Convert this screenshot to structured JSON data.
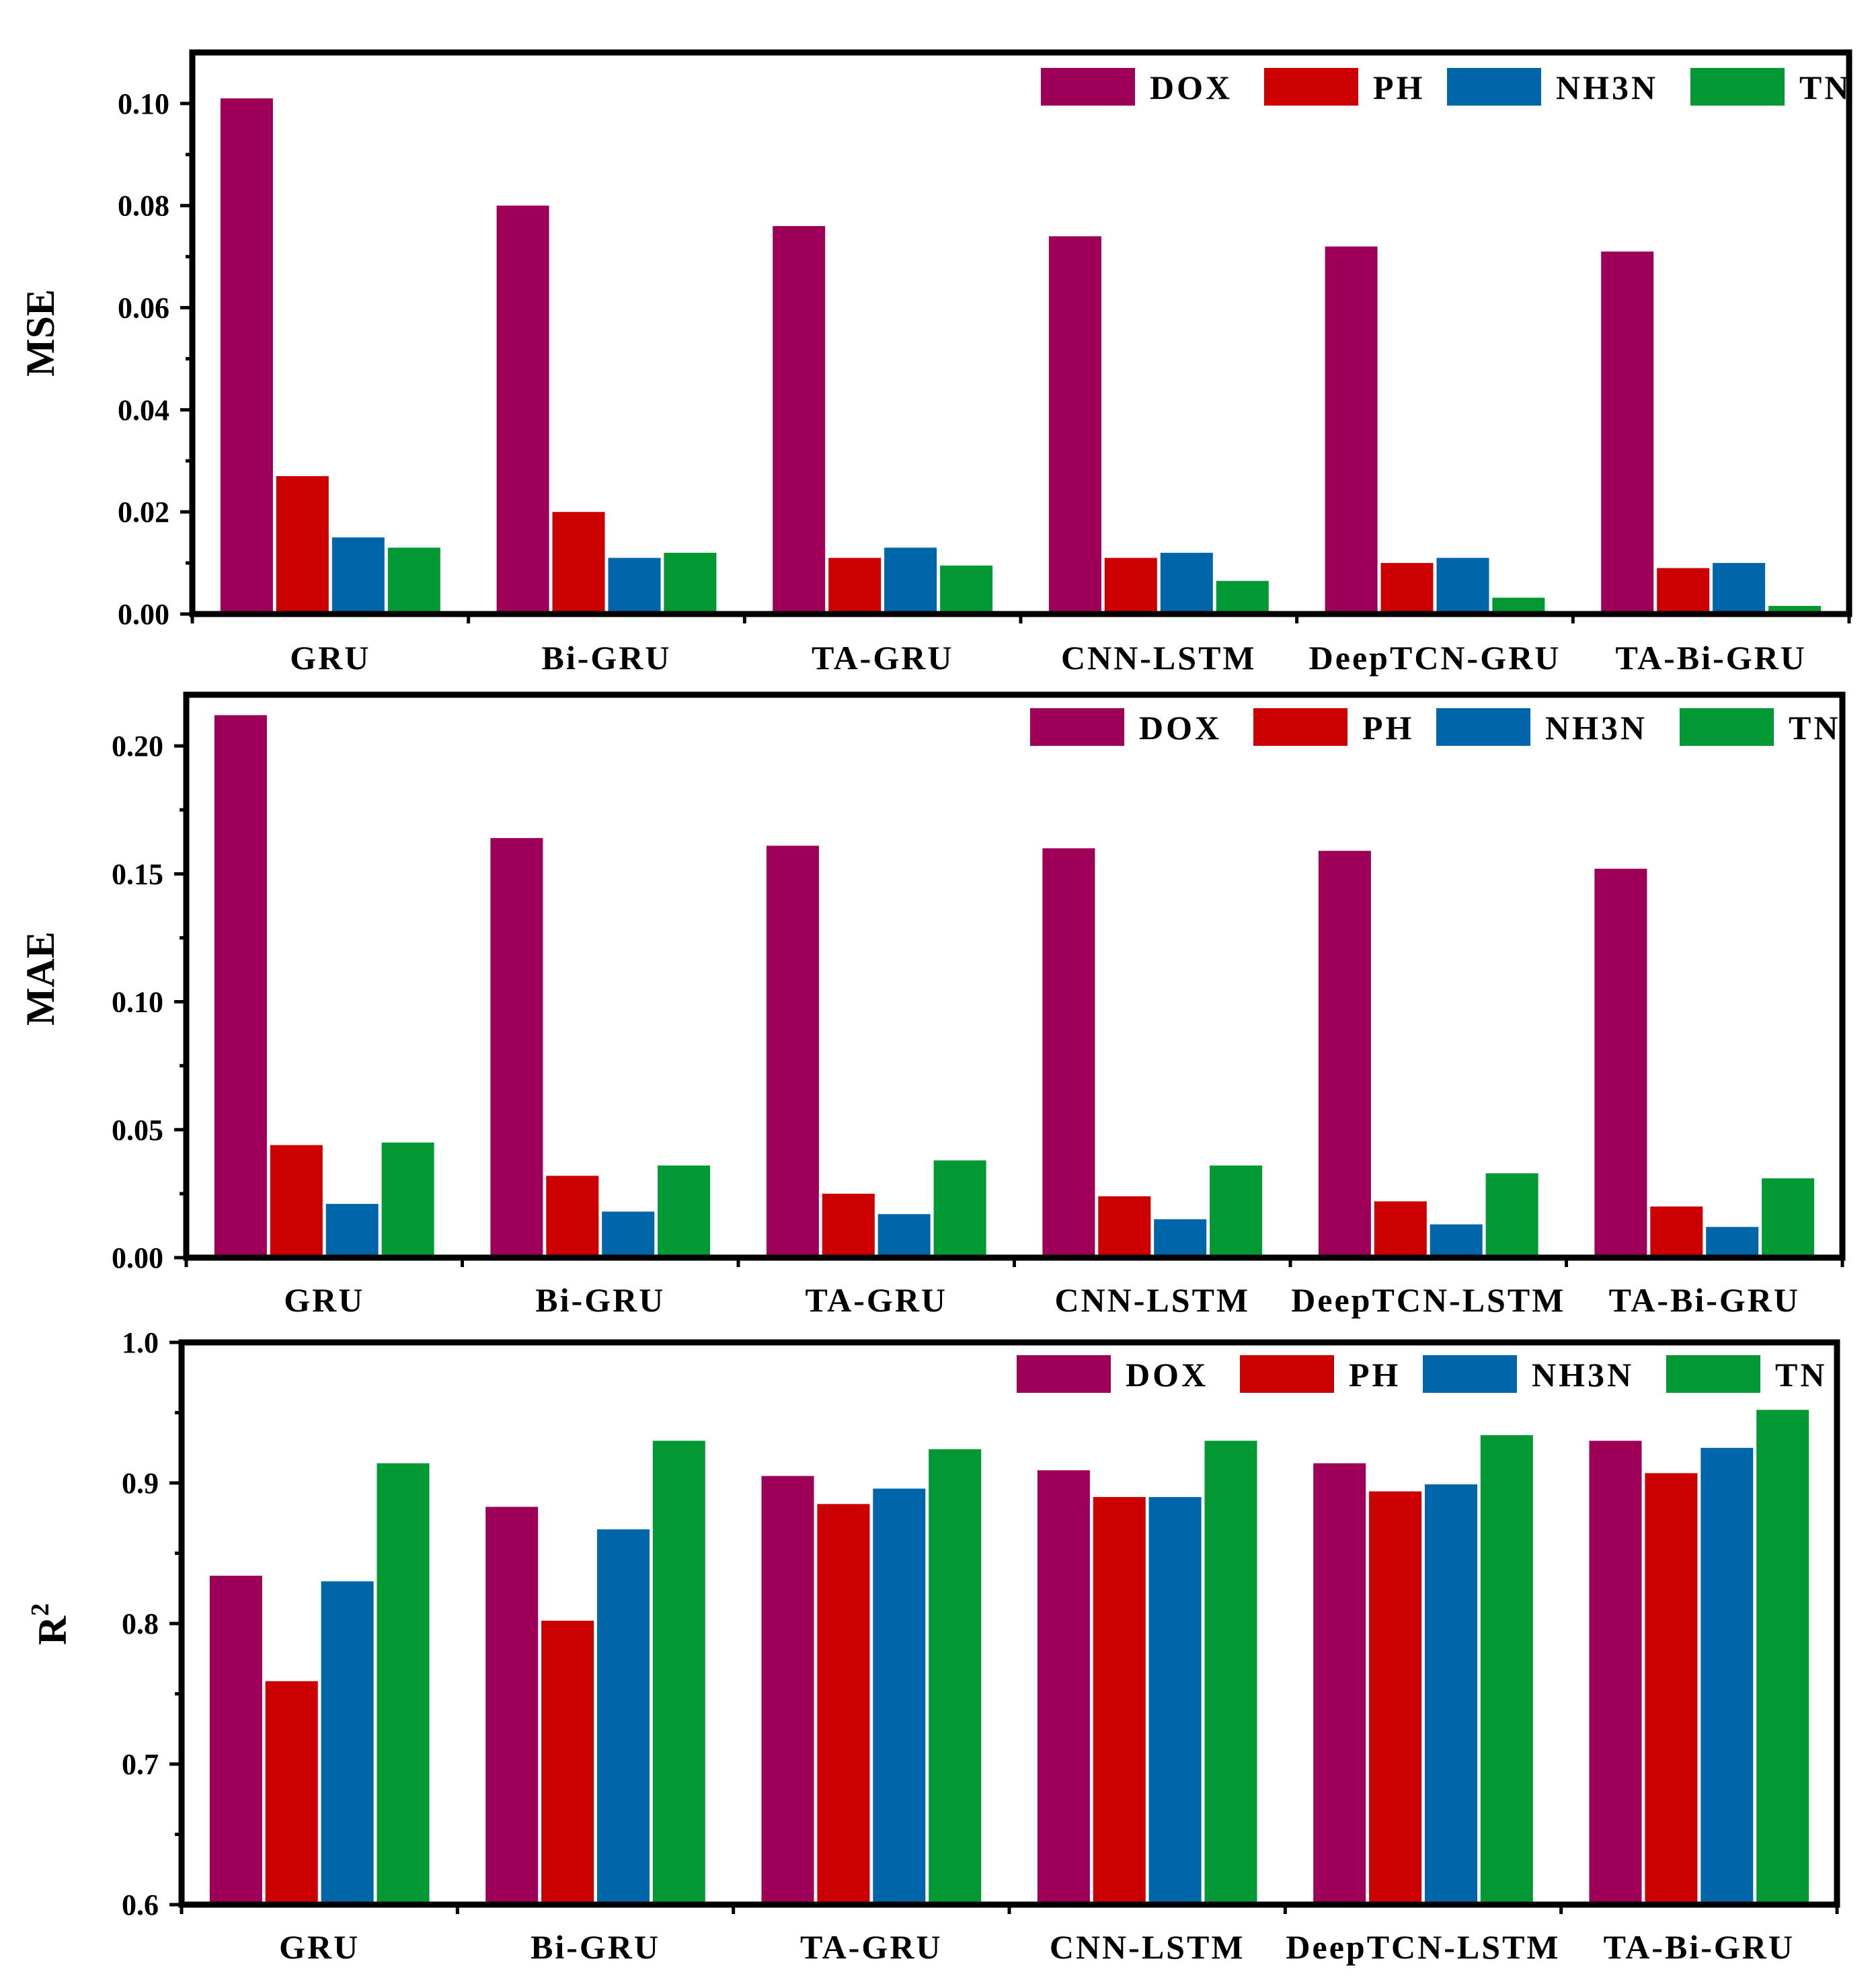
{
  "colors": {
    "DOX": "#9E0059",
    "PH": "#CC0000",
    "NH3N": "#0066AA",
    "TN": "#009933"
  },
  "chart_data": [
    {
      "type": "bar",
      "ylabel": "MSE",
      "ylim": [
        0.0,
        0.11
      ],
      "yticks": [
        "0.00",
        "0.02",
        "0.04",
        "0.06",
        "0.08",
        "0.10"
      ],
      "ytick_values": [
        0.0,
        0.02,
        0.04,
        0.06,
        0.08,
        0.1
      ],
      "categories": [
        "GRU",
        "Bi-GRU",
        "TA-GRU",
        "CNN-LSTM",
        "DeepTCN-GRU",
        "TA-Bi-GRU"
      ],
      "legend": [
        "DOX",
        "PH",
        "NH3N",
        "TN"
      ],
      "series": [
        {
          "name": "DOX",
          "values": [
            0.101,
            0.08,
            0.076,
            0.074,
            0.072,
            0.071
          ]
        },
        {
          "name": "PH",
          "values": [
            0.027,
            0.02,
            0.011,
            0.011,
            0.01,
            0.009
          ]
        },
        {
          "name": "NH3N",
          "values": [
            0.015,
            0.011,
            0.013,
            0.012,
            0.011,
            0.01
          ]
        },
        {
          "name": "TN",
          "values": [
            0.013,
            0.012,
            0.0095,
            0.0065,
            0.0032,
            0.0016
          ]
        }
      ]
    },
    {
      "type": "bar",
      "ylabel": "MAE",
      "ylim": [
        0.0,
        0.22
      ],
      "yticks": [
        "0.00",
        "0.05",
        "0.10",
        "0.15",
        "0.20"
      ],
      "ytick_values": [
        0.0,
        0.05,
        0.1,
        0.15,
        0.2
      ],
      "categories": [
        "GRU",
        "Bi-GRU",
        "TA-GRU",
        "CNN-LSTM",
        "DeepTCN-LSTM",
        "TA-Bi-GRU"
      ],
      "legend": [
        "DOX",
        "PH",
        "NH3N",
        "TN"
      ],
      "series": [
        {
          "name": "DOX",
          "values": [
            0.212,
            0.164,
            0.161,
            0.16,
            0.159,
            0.152
          ]
        },
        {
          "name": "PH",
          "values": [
            0.044,
            0.032,
            0.025,
            0.024,
            0.022,
            0.02
          ]
        },
        {
          "name": "NH3N",
          "values": [
            0.021,
            0.018,
            0.017,
            0.015,
            0.013,
            0.012
          ]
        },
        {
          "name": "TN",
          "values": [
            0.045,
            0.036,
            0.038,
            0.036,
            0.033,
            0.031
          ]
        }
      ]
    },
    {
      "type": "bar",
      "ylabel": "R",
      "ylabel_superscript": "2",
      "ylim": [
        0.6,
        1.0
      ],
      "yticks": [
        "0.6",
        "0.7",
        "0.8",
        "0.9",
        "1.0"
      ],
      "ytick_values": [
        0.6,
        0.7,
        0.8,
        0.9,
        1.0
      ],
      "categories": [
        "GRU",
        "Bi-GRU",
        "TA-GRU",
        "CNN-LSTM",
        "DeepTCN-LSTM",
        "TA-Bi-GRU"
      ],
      "legend": [
        "DOX",
        "PH",
        "NH3N",
        "TN"
      ],
      "series": [
        {
          "name": "DOX",
          "values": [
            0.834,
            0.883,
            0.905,
            0.909,
            0.914,
            0.93
          ]
        },
        {
          "name": "PH",
          "values": [
            0.759,
            0.802,
            0.885,
            0.89,
            0.894,
            0.907
          ]
        },
        {
          "name": "NH3N",
          "values": [
            0.83,
            0.867,
            0.896,
            0.89,
            0.899,
            0.925
          ]
        },
        {
          "name": "TN",
          "values": [
            0.914,
            0.93,
            0.924,
            0.93,
            0.934,
            0.952
          ]
        }
      ]
    }
  ]
}
